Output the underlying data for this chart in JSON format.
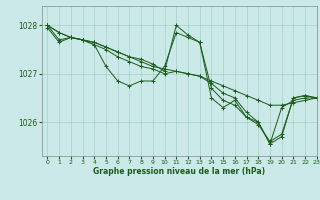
{
  "title": "Graphe pression niveau de la mer (hPa)",
  "background_color": "#cce9e9",
  "grid_color": "#99ccbb",
  "line_color": "#1a5c1a",
  "xlim": [
    -0.5,
    23
  ],
  "ylim": [
    1025.3,
    1028.4
  ],
  "yticks": [
    1026,
    1027,
    1028
  ],
  "xticks": [
    0,
    1,
    2,
    3,
    4,
    5,
    6,
    7,
    8,
    9,
    10,
    11,
    12,
    13,
    14,
    15,
    16,
    17,
    18,
    19,
    20,
    21,
    22,
    23
  ],
  "series": [
    [
      1028.0,
      1027.85,
      1027.75,
      1027.7,
      1027.65,
      1027.55,
      1027.45,
      1027.35,
      1027.25,
      1027.15,
      1027.1,
      1027.05,
      1027.0,
      1026.95,
      1026.85,
      1026.75,
      1026.65,
      1026.55,
      1026.45,
      1026.35,
      1026.35,
      1026.4,
      1026.45,
      1026.5
    ],
    [
      1028.0,
      1027.7,
      1027.75,
      1027.7,
      1027.6,
      1027.15,
      1026.85,
      1026.75,
      1026.85,
      1026.85,
      1027.15,
      1027.85,
      1027.75,
      1027.65,
      1026.7,
      1026.45,
      1026.35,
      1026.1,
      1025.95,
      1025.6,
      1025.75,
      1026.5,
      1026.55,
      1026.5
    ],
    [
      1027.95,
      1027.65,
      1027.75,
      1027.7,
      1027.65,
      1027.55,
      1027.45,
      1027.35,
      1027.3,
      1027.2,
      1027.05,
      1028.0,
      1027.8,
      1027.65,
      1026.5,
      1026.3,
      1026.45,
      1026.1,
      1026.0,
      1025.55,
      1025.7,
      1026.5,
      1026.55,
      1026.5
    ],
    [
      1028.0,
      1027.85,
      1027.75,
      1027.7,
      1027.6,
      1027.5,
      1027.35,
      1027.25,
      1027.15,
      1027.1,
      1027.0,
      1027.05,
      1027.0,
      1026.95,
      1026.8,
      1026.6,
      1026.5,
      1026.2,
      1026.0,
      1025.55,
      1026.3,
      1026.45,
      1026.5,
      1026.5
    ]
  ],
  "figsize": [
    3.2,
    2.0
  ],
  "dpi": 100
}
